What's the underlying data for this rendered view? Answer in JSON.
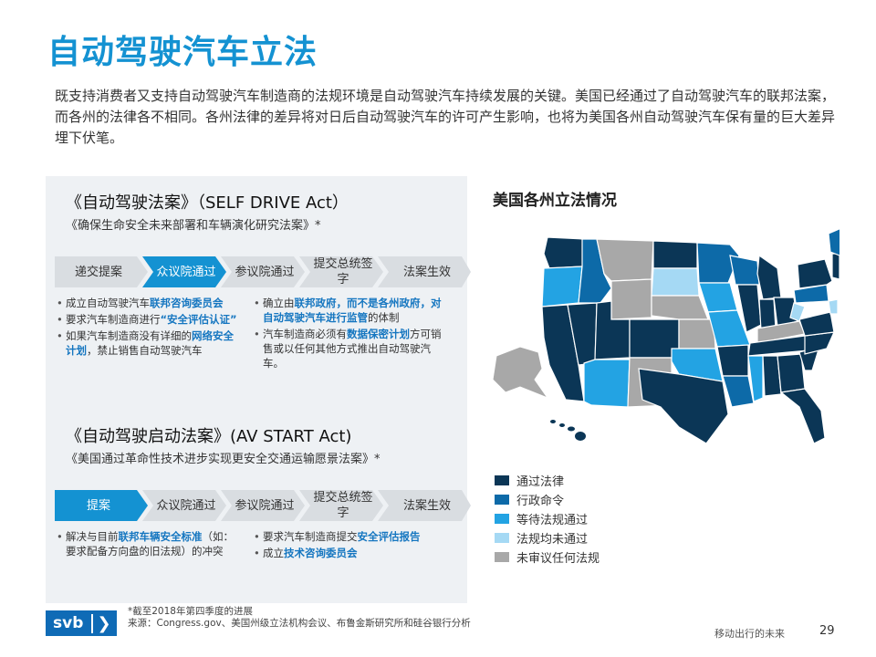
{
  "title": "自动驾驶汽车立法",
  "intro": "既支持消费者又支持自动驾驶汽车制造商的法规环境是自动驾驶汽车持续发展的关键。美国已经通过了自动驾驶汽车的联邦法案，而各州的法律各不相同。各州法律的差异将对日后自动驾驶汽车的许可产生影响，也将为美国各州自动驾驶汽车保有量的巨大差异埋下伏笔。",
  "act1": {
    "title": "《自动驾驶法案》（SELF DRIVE Act）",
    "subtitle": "《确保生命安全未来部署和车辆演化研究法案》*",
    "steps": [
      "递交提案",
      "众议院通过",
      "参议院通过",
      "提交总统签字",
      "法案生效"
    ],
    "left_bullets": [
      [
        {
          "t": "成立自动驾驶汽车"
        },
        {
          "t": "联邦咨询委员会",
          "h": true
        }
      ],
      [
        {
          "t": "要求汽车制造商进行"
        },
        {
          "t": "“安全评估认证”",
          "h": true
        }
      ],
      [
        {
          "t": "如果汽车制造商没有详细的"
        },
        {
          "t": "网络安全计划",
          "h": true
        },
        {
          "t": "，禁止销售自动驾驶汽车"
        }
      ]
    ],
    "right_bullets": [
      [
        {
          "t": "确立由"
        },
        {
          "t": "联邦政府，而不是各州政府，对自动驾驶汽车进行监管",
          "h": true
        },
        {
          "t": "的体制"
        }
      ],
      [
        {
          "t": "汽车制造商必须有"
        },
        {
          "t": "数据保密计划",
          "h": true
        },
        {
          "t": "方可销售或以任何其他方式推出自动驾驶汽车。"
        }
      ]
    ]
  },
  "act2": {
    "title": "《自动驾驶启动法案》(AV START Act)",
    "subtitle": "《美国通过革命性技术进步实现更安全交通运输愿景法案》*",
    "steps": [
      "提案",
      "众议院通过",
      "参议院通过",
      "提交总统签字",
      "法案生效"
    ],
    "left_bullets": [
      [
        {
          "t": "解决与目前"
        },
        {
          "t": "联邦车辆安全标准",
          "h": true
        },
        {
          "t": "（如：要求配备方向盘的旧法规）的冲突"
        }
      ]
    ],
    "right_bullets": [
      [
        {
          "t": "要求汽车制造商提交"
        },
        {
          "t": "安全评估报告",
          "h": true
        }
      ],
      [
        {
          "t": "成立"
        },
        {
          "t": "技术咨询委员会",
          "h": true
        }
      ]
    ]
  },
  "map": {
    "title": "美国各州立法情况",
    "legend": [
      {
        "label": "通过法律",
        "color": "#0b3656"
      },
      {
        "label": "行政命令",
        "color": "#0d6aa8"
      },
      {
        "label": "等待法规通过",
        "color": "#23a3e3"
      },
      {
        "label": "法规均未通过",
        "color": "#a5d9f4"
      },
      {
        "label": "未审议任何法规",
        "color": "#a8a8a8"
      }
    ]
  },
  "footnote": [
    "*截至2018年第四季度的进展",
    "来源：Congress.gov、美国州级立法机构会议、布鲁金斯研究所和硅谷银行分析"
  ],
  "logo": {
    "text": "svb",
    "chevron": "❯"
  },
  "footer_text": "移动出行的未来",
  "page_number": "29"
}
